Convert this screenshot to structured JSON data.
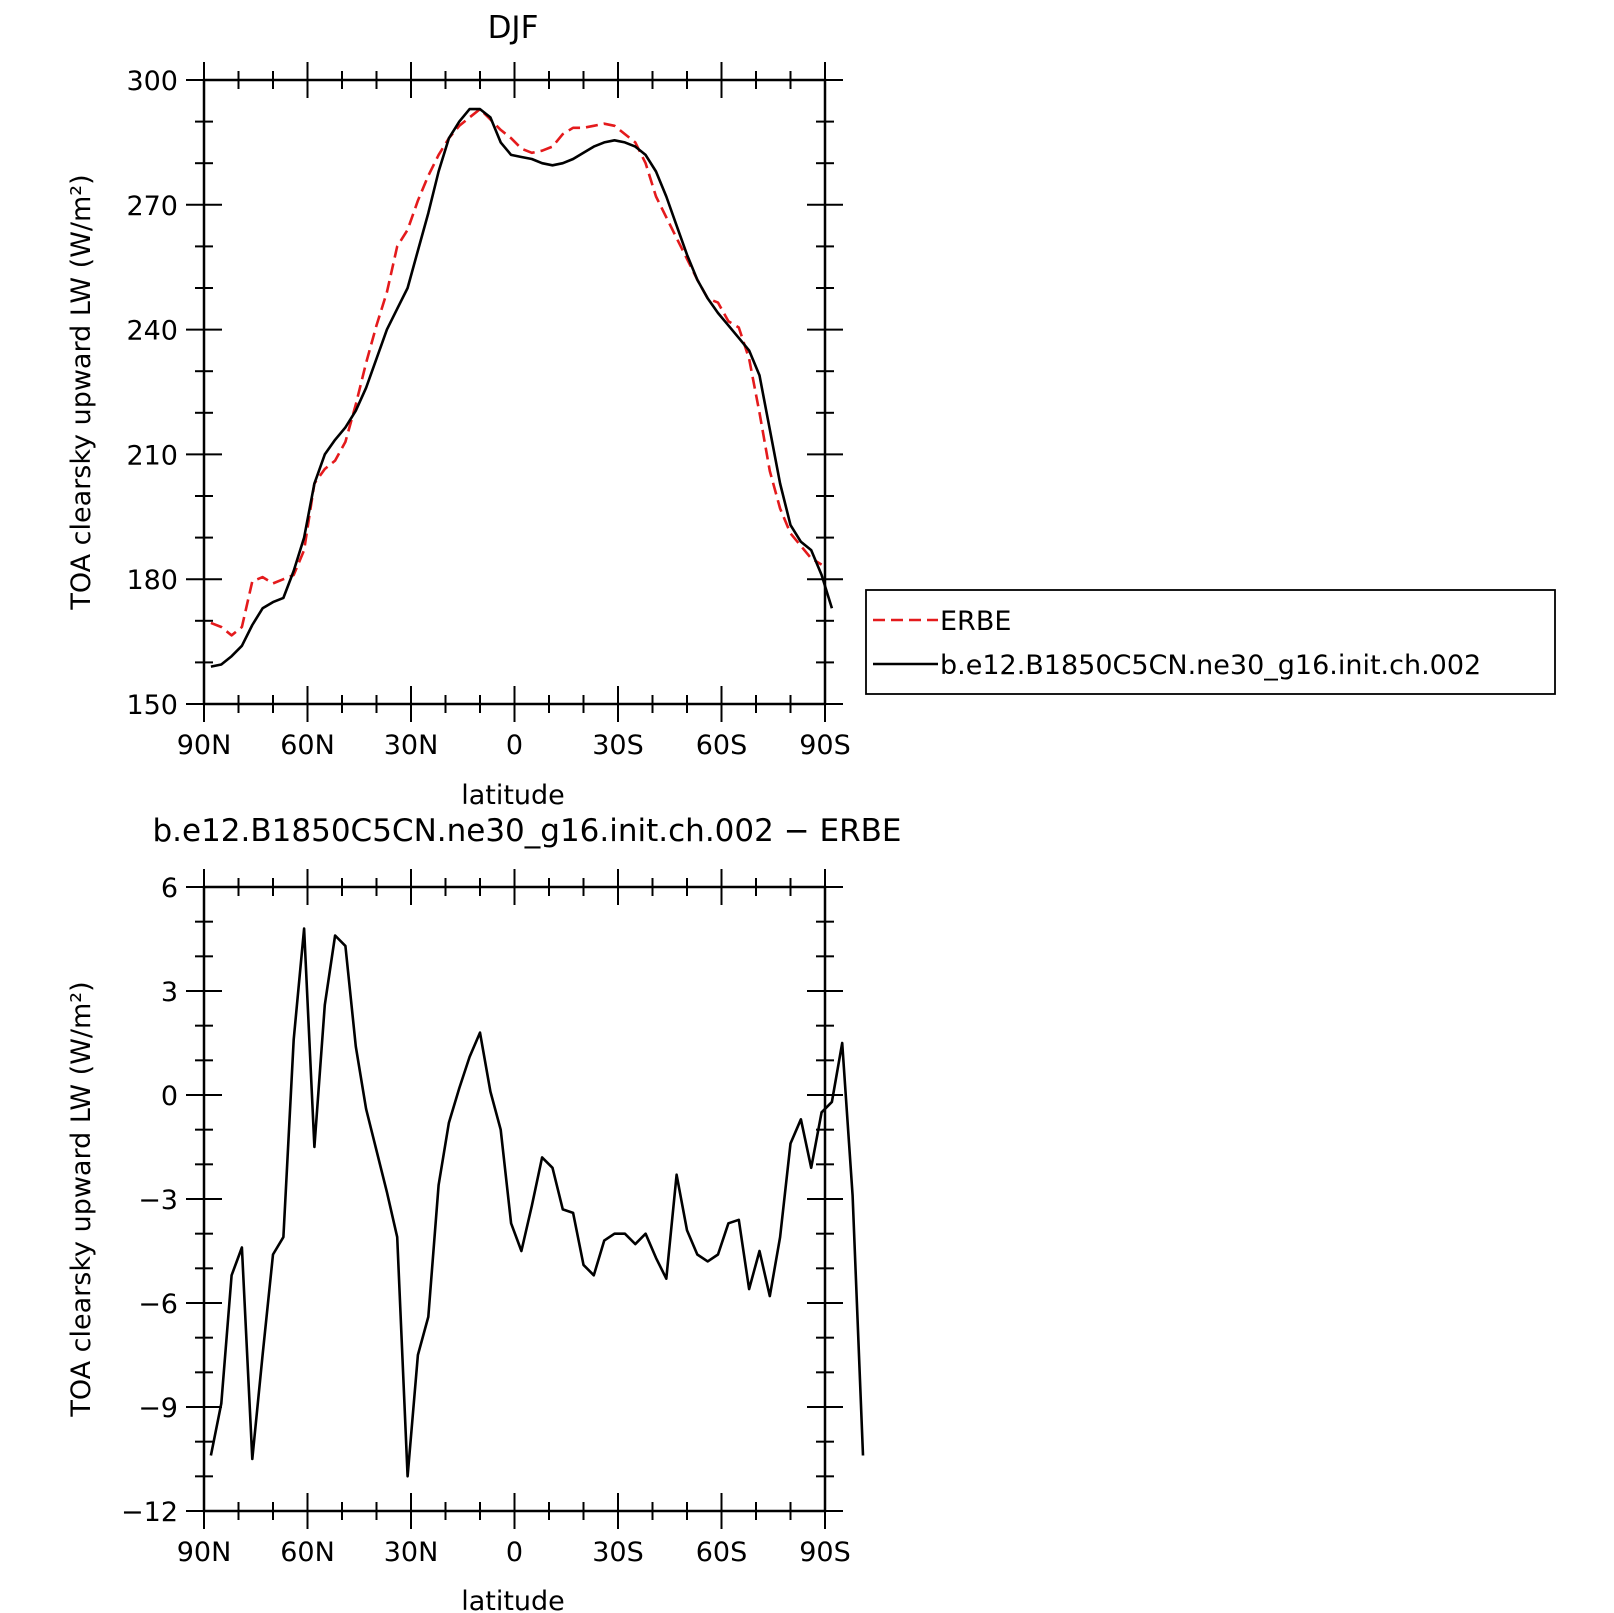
{
  "chart_data": [
    {
      "type": "line",
      "title": "DJF",
      "xlabel": "latitude",
      "ylabel": "TOA clearsky upward LW (W/m²)",
      "xlim": [
        90,
        -90
      ],
      "ylim": [
        150,
        300
      ],
      "xticks": [
        {
          "value": 90,
          "label": "90N"
        },
        {
          "value": 60,
          "label": "60N"
        },
        {
          "value": 30,
          "label": "30N"
        },
        {
          "value": 0,
          "label": "0"
        },
        {
          "value": -30,
          "label": "30S"
        },
        {
          "value": -60,
          "label": "60S"
        },
        {
          "value": -90,
          "label": "90S"
        }
      ],
      "yticks": [
        150,
        180,
        210,
        240,
        270,
        300
      ],
      "legend": "right",
      "series": [
        {
          "name": "ERBE",
          "color": "#e41a1c",
          "dash": "dashed",
          "points": [
            [
              88,
              169.5
            ],
            [
              85,
              168.5
            ],
            [
              82,
              166.5
            ],
            [
              79,
              168.5
            ],
            [
              76,
              179.5
            ],
            [
              73,
              180.5
            ],
            [
              70,
              179
            ],
            [
              67,
              180
            ],
            [
              64,
              181
            ],
            [
              61,
              187
            ],
            [
              58,
              203
            ],
            [
              55,
              206.5
            ],
            [
              52,
              208.5
            ],
            [
              49,
              213
            ],
            [
              46,
              222
            ],
            [
              43,
              232
            ],
            [
              40,
              241
            ],
            [
              37,
              249
            ],
            [
              34,
              260
            ],
            [
              31,
              264
            ],
            [
              28,
              271
            ],
            [
              25,
              277
            ],
            [
              22,
              282
            ],
            [
              19,
              286
            ],
            [
              16,
              289
            ],
            [
              13,
              291
            ],
            [
              10,
              293
            ],
            [
              7,
              290.5
            ],
            [
              4,
              288
            ],
            [
              1,
              286
            ],
            [
              -2,
              283.5
            ],
            [
              -5,
              282.5
            ],
            [
              -8,
              283
            ],
            [
              -11,
              284
            ],
            [
              -14,
              287
            ],
            [
              -17,
              288.5
            ],
            [
              -20,
              288.5
            ],
            [
              -23,
              289
            ],
            [
              -26,
              289.5
            ],
            [
              -29,
              289
            ],
            [
              -32,
              287
            ],
            [
              -35,
              285
            ],
            [
              -38,
              280
            ],
            [
              -41,
              272
            ],
            [
              -44,
              267
            ],
            [
              -47,
              262
            ],
            [
              -50,
              257
            ],
            [
              -53,
              252
            ],
            [
              -56,
              247.5
            ],
            [
              -59,
              246.5
            ],
            [
              -62,
              242
            ],
            [
              -65,
              240.5
            ],
            [
              -68,
              233
            ],
            [
              -71,
              220
            ],
            [
              -74,
              206
            ],
            [
              -77,
              197
            ],
            [
              -80,
              191
            ],
            [
              -83,
              188
            ],
            [
              -86,
              185
            ],
            [
              -89,
              183.5
            ]
          ]
        },
        {
          "name": "b.e12.B1850C5CN.ne30_g16.init.ch.002",
          "color": "#000000",
          "dash": "solid",
          "points": [
            [
              88,
              159
            ],
            [
              85,
              159.5
            ],
            [
              82,
              161.5
            ],
            [
              79,
              164
            ],
            [
              76,
              169
            ],
            [
              73,
              173
            ],
            [
              70,
              174.5
            ],
            [
              67,
              175.5
            ],
            [
              64,
              182
            ],
            [
              61,
              190
            ],
            [
              58,
              203
            ],
            [
              55,
              210
            ],
            [
              52,
              213.5
            ],
            [
              49,
              216.5
            ],
            [
              46,
              220.5
            ],
            [
              43,
              226
            ],
            [
              40,
              233
            ],
            [
              37,
              240
            ],
            [
              34,
              245
            ],
            [
              31,
              250
            ],
            [
              28,
              259
            ],
            [
              25,
              268
            ],
            [
              22,
              278
            ],
            [
              19,
              286
            ],
            [
              16,
              290
            ],
            [
              13,
              293
            ],
            [
              10,
              293
            ],
            [
              7,
              291
            ],
            [
              4,
              285
            ],
            [
              1,
              282
            ],
            [
              -2,
              281.5
            ],
            [
              -5,
              281
            ],
            [
              -8,
              280
            ],
            [
              -11,
              279.5
            ],
            [
              -14,
              280
            ],
            [
              -17,
              281
            ],
            [
              -20,
              282.5
            ],
            [
              -23,
              284
            ],
            [
              -26,
              285
            ],
            [
              -29,
              285.5
            ],
            [
              -32,
              285
            ],
            [
              -35,
              284
            ],
            [
              -38,
              282
            ],
            [
              -41,
              278
            ],
            [
              -44,
              272
            ],
            [
              -47,
              265
            ],
            [
              -50,
              258
            ],
            [
              -53,
              252
            ],
            [
              -56,
              247.5
            ],
            [
              -59,
              244
            ],
            [
              -62,
              241
            ],
            [
              -65,
              238
            ],
            [
              -68,
              235
            ],
            [
              -71,
              229
            ],
            [
              -74,
              216
            ],
            [
              -77,
              203
            ],
            [
              -80,
              193
            ],
            [
              -83,
              189
            ],
            [
              -86,
              187
            ],
            [
              -89,
              181
            ],
            [
              -92,
              173
            ]
          ]
        }
      ]
    },
    {
      "type": "line",
      "title": "b.e12.B1850C5CN.ne30_g16.init.ch.002 − ERBE",
      "xlabel": "latitude",
      "ylabel": "TOA clearsky upward LW (W/m²)",
      "xlim": [
        90,
        -90
      ],
      "ylim": [
        -12,
        6
      ],
      "xticks": [
        {
          "value": 90,
          "label": "90N"
        },
        {
          "value": 60,
          "label": "60N"
        },
        {
          "value": 30,
          "label": "30N"
        },
        {
          "value": 0,
          "label": "0"
        },
        {
          "value": -30,
          "label": "30S"
        },
        {
          "value": -60,
          "label": "60S"
        },
        {
          "value": -90,
          "label": "90S"
        }
      ],
      "yticks": [
        -12,
        -9,
        -6,
        -3,
        0,
        3,
        6
      ],
      "series": [
        {
          "color": "#000000",
          "dash": "solid",
          "points": [
            [
              88,
              -10.4
            ],
            [
              85,
              -8.9
            ],
            [
              82,
              -5.2
            ],
            [
              79,
              -4.4
            ],
            [
              76,
              -10.5
            ],
            [
              73,
              -7.5
            ],
            [
              70,
              -4.6
            ],
            [
              67,
              -4.1
            ],
            [
              64,
              1.6
            ],
            [
              61,
              4.8
            ],
            [
              58,
              -1.5
            ],
            [
              55,
              2.6
            ],
            [
              52,
              4.6
            ],
            [
              49,
              4.3
            ],
            [
              46,
              1.4
            ],
            [
              43,
              -0.4
            ],
            [
              40,
              -1.6
            ],
            [
              37,
              -2.8
            ],
            [
              34,
              -4.1
            ],
            [
              31,
              -11.0
            ],
            [
              28,
              -7.5
            ],
            [
              25,
              -6.4
            ],
            [
              22,
              -2.6
            ],
            [
              19,
              -0.8
            ],
            [
              16,
              0.2
            ],
            [
              13,
              1.1
            ],
            [
              10,
              1.8
            ],
            [
              7,
              0.1
            ],
            [
              4,
              -1.0
            ],
            [
              1,
              -3.7
            ],
            [
              -2,
              -4.5
            ],
            [
              -5,
              -3.2
            ],
            [
              -8,
              -1.8
            ],
            [
              -11,
              -2.1
            ],
            [
              -14,
              -3.3
            ],
            [
              -17,
              -3.4
            ],
            [
              -20,
              -4.9
            ],
            [
              -23,
              -5.2
            ],
            [
              -26,
              -4.2
            ],
            [
              -29,
              -4.0
            ],
            [
              -32,
              -4.0
            ],
            [
              -35,
              -4.3
            ],
            [
              -38,
              -4.0
            ],
            [
              -41,
              -4.7
            ],
            [
              -44,
              -5.3
            ],
            [
              -47,
              -2.3
            ],
            [
              -50,
              -3.9
            ],
            [
              -53,
              -4.6
            ],
            [
              -56,
              -4.8
            ],
            [
              -59,
              -4.6
            ],
            [
              -62,
              -3.7
            ],
            [
              -65,
              -3.6
            ],
            [
              -68,
              -5.6
            ],
            [
              -71,
              -4.5
            ],
            [
              -74,
              -5.8
            ],
            [
              -77,
              -4.1
            ],
            [
              -80,
              -1.4
            ],
            [
              -83,
              -0.7
            ],
            [
              -86,
              -2.1
            ],
            [
              -89,
              -0.5
            ],
            [
              -92,
              -0.2
            ],
            [
              -95,
              1.5
            ],
            [
              -98,
              -2.9
            ],
            [
              -101,
              -10.4
            ]
          ]
        }
      ]
    }
  ]
}
